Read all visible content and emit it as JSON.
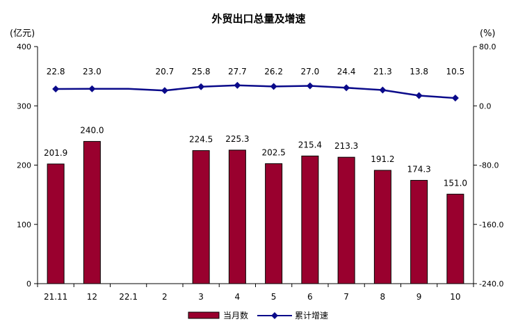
{
  "chart_data": {
    "type": "bar",
    "title": "外贸出口总量及增速",
    "ylabel_left": "(亿元)",
    "ylabel_right": "(%)",
    "categories": [
      "21.11",
      "12",
      "22.1",
      "2",
      "3",
      "4",
      "5",
      "6",
      "7",
      "8",
      "9",
      "10"
    ],
    "y_left_ticks": [
      "0",
      "100",
      "200",
      "300",
      "400"
    ],
    "y_right_ticks": [
      "-240.0",
      "-160.0",
      "-80.0",
      "0.0",
      "80.0"
    ],
    "ylim_left": [
      0,
      400
    ],
    "ylim_right": [
      -240,
      80
    ],
    "series": [
      {
        "name": "当月数",
        "kind": "bar",
        "color": "#99002e",
        "values": [
          201.9,
          240.0,
          null,
          null,
          224.5,
          225.3,
          202.5,
          215.4,
          213.3,
          191.2,
          174.3,
          151.0
        ],
        "labels": [
          "201.9",
          "240.0",
          "",
          "",
          "224.5",
          "225.3",
          "202.5",
          "215.4",
          "213.3",
          "191.2",
          "174.3",
          "151.0"
        ]
      },
      {
        "name": "累计增速",
        "kind": "line",
        "axis": "right",
        "color": "#0a0a8a",
        "values": [
          22.8,
          23.0,
          23.0,
          20.7,
          25.8,
          27.7,
          26.2,
          27.0,
          24.4,
          21.3,
          13.8,
          10.5
        ],
        "markers": [
          true,
          true,
          false,
          true,
          true,
          true,
          true,
          true,
          true,
          true,
          true,
          true
        ],
        "labels": [
          "22.8",
          "23.0",
          "",
          "20.7",
          "25.8",
          "27.7",
          "26.2",
          "27.0",
          "24.4",
          "21.3",
          "13.8",
          "10.5"
        ]
      }
    ],
    "legend_position": "bottom-center"
  }
}
